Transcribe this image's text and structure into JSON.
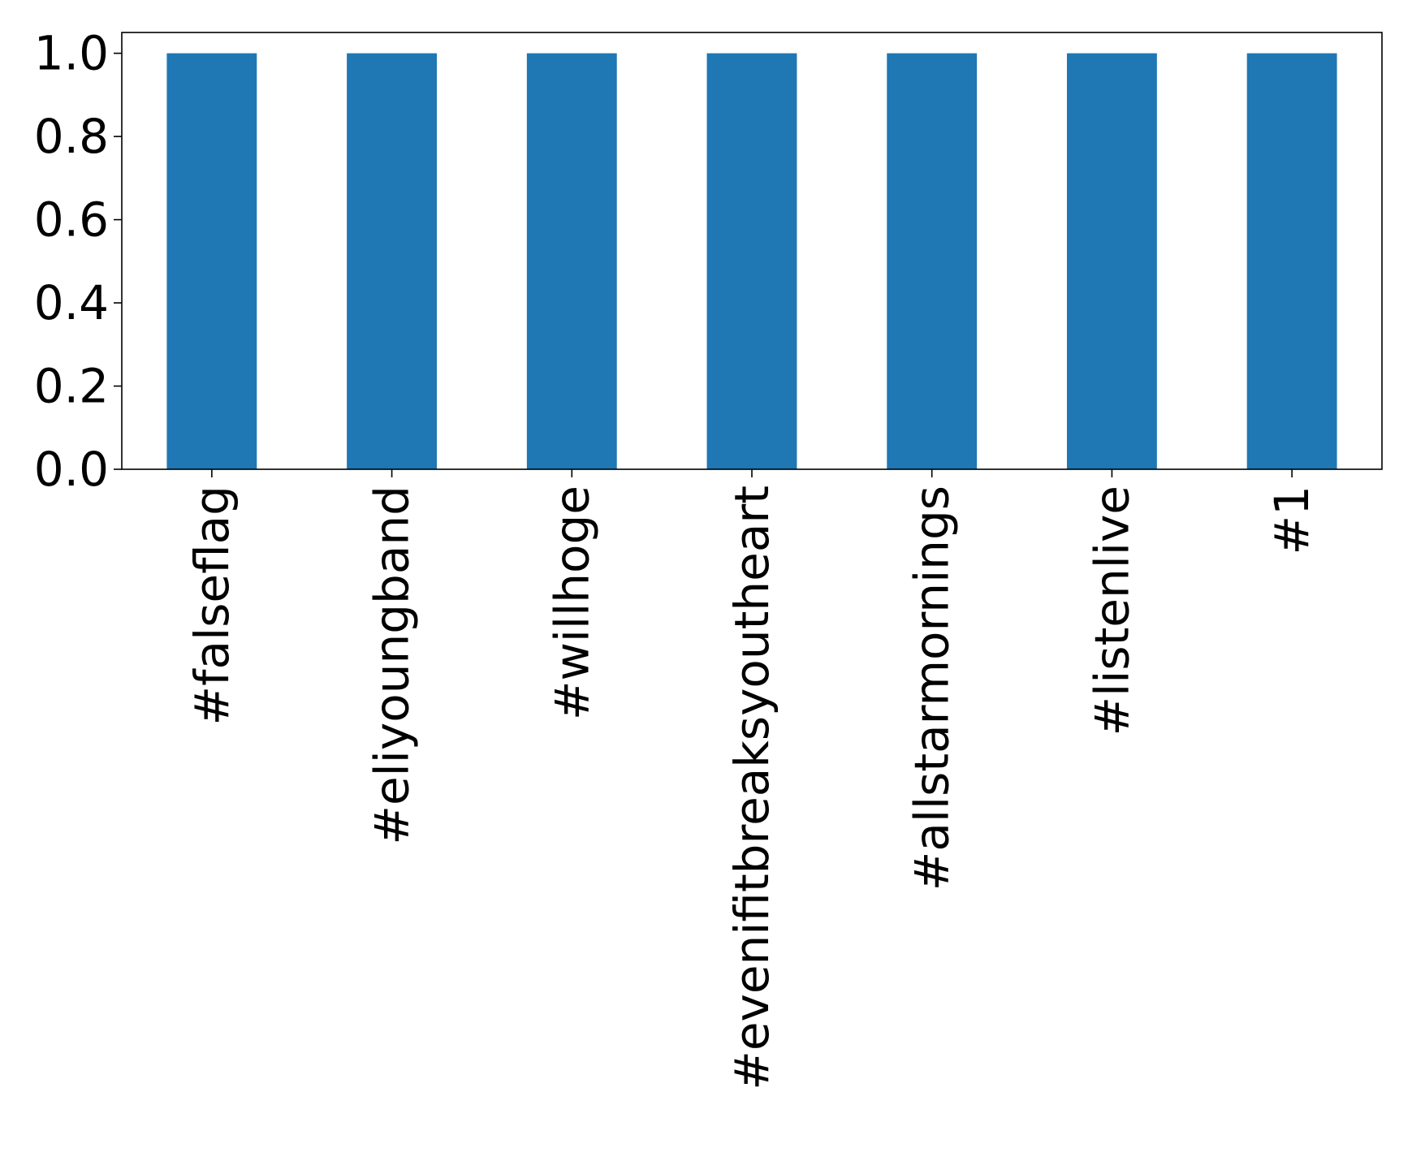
{
  "chart_data": {
    "type": "bar",
    "title": "",
    "xlabel": "",
    "ylabel": "",
    "categories": [
      "#falseflag",
      "#eliyoungband",
      "#willhoge",
      "#evenifitbreaksyoutheart",
      "#allstarmornings",
      "#listenlive",
      "#1"
    ],
    "values": [
      1.0,
      1.0,
      1.0,
      1.0,
      1.0,
      1.0,
      1.0
    ],
    "ylim": [
      0,
      1.05
    ],
    "yticks": [
      "0.0",
      "0.2",
      "0.4",
      "0.6",
      "0.8",
      "1.0"
    ],
    "bar_color": "#1f77b4",
    "grid": false,
    "legend": "none"
  }
}
